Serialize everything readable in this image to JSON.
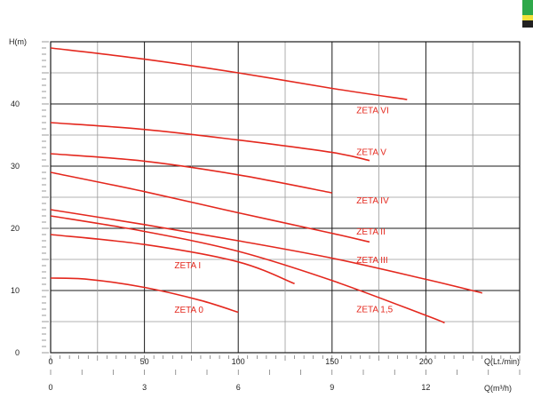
{
  "chart_data": {
    "type": "line",
    "ylabel": "H(m)",
    "xlabel": "Q(Lt./min)",
    "x2label": "Q(m³/h)",
    "xlim": [
      0,
      250
    ],
    "ylim": [
      0,
      50
    ],
    "x_ticks": [
      0,
      50,
      100,
      150,
      200
    ],
    "y_ticks": [
      0,
      10,
      20,
      30,
      40
    ],
    "x2_ticks": [
      0,
      3,
      6,
      9,
      12
    ],
    "grid": true,
    "series": [
      {
        "name": "ZETA VI",
        "x": [
          0,
          50,
          100,
          150,
          190
        ],
        "y": [
          49,
          47.2,
          45,
          42.5,
          40.7
        ]
      },
      {
        "name": "ZETA V",
        "x": [
          0,
          50,
          100,
          150,
          170
        ],
        "y": [
          37,
          35.9,
          34.2,
          32.2,
          30.9
        ]
      },
      {
        "name": "ZETA IV",
        "x": [
          0,
          50,
          100,
          150
        ],
        "y": [
          32,
          30.8,
          28.6,
          25.7
        ]
      },
      {
        "name": "ZETA II",
        "x": [
          0,
          50,
          100,
          150,
          170
        ],
        "y": [
          29,
          25.9,
          22.5,
          19.2,
          17.8
        ]
      },
      {
        "name": "ZETA III",
        "x": [
          0,
          50,
          100,
          150,
          200,
          230
        ],
        "y": [
          23,
          20.6,
          18,
          15.2,
          11.8,
          9.6
        ]
      },
      {
        "name": "ZETA 1,5",
        "x": [
          0,
          50,
          100,
          150,
          200,
          210
        ],
        "y": [
          22,
          19.5,
          16.3,
          11.6,
          6,
          4.8
        ]
      },
      {
        "name": "ZETA I",
        "x": [
          0,
          50,
          100,
          130
        ],
        "y": [
          19,
          17.4,
          14.6,
          11.1
        ]
      },
      {
        "name": "ZETA 0",
        "x": [
          0,
          20,
          50,
          80,
          100
        ],
        "y": [
          12,
          11.8,
          10.5,
          8.4,
          6.5
        ]
      }
    ],
    "labels": [
      {
        "series": "ZETA VI",
        "text": "ZETA VI",
        "x": 163,
        "y": 38.5
      },
      {
        "series": "ZETA V",
        "text": "ZETA V",
        "x": 163,
        "y": 31.8
      },
      {
        "series": "ZETA IV",
        "text": "ZETA IV",
        "x": 163,
        "y": 24
      },
      {
        "series": "ZETA II",
        "text": "ZETA II",
        "x": 163,
        "y": 19
      },
      {
        "series": "ZETA III",
        "text": "ZETA III",
        "x": 163,
        "y": 14.4
      },
      {
        "series": "ZETA 1,5",
        "text": "ZETA 1,5",
        "x": 163,
        "y": 6.5
      },
      {
        "series": "ZETA I",
        "text": "ZETA I",
        "x": 66,
        "y": 13.6
      },
      {
        "series": "ZETA 0",
        "text": "ZETA 0",
        "x": 66,
        "y": 6.4
      }
    ]
  },
  "colors": {
    "curve": "#e4281e",
    "grid_major": "#1a1a1a",
    "grid_minor": "#9a9a9a",
    "badge_green": "#2ea84a",
    "badge_yellow": "#f2e23a",
    "badge_dark": "#222222"
  }
}
